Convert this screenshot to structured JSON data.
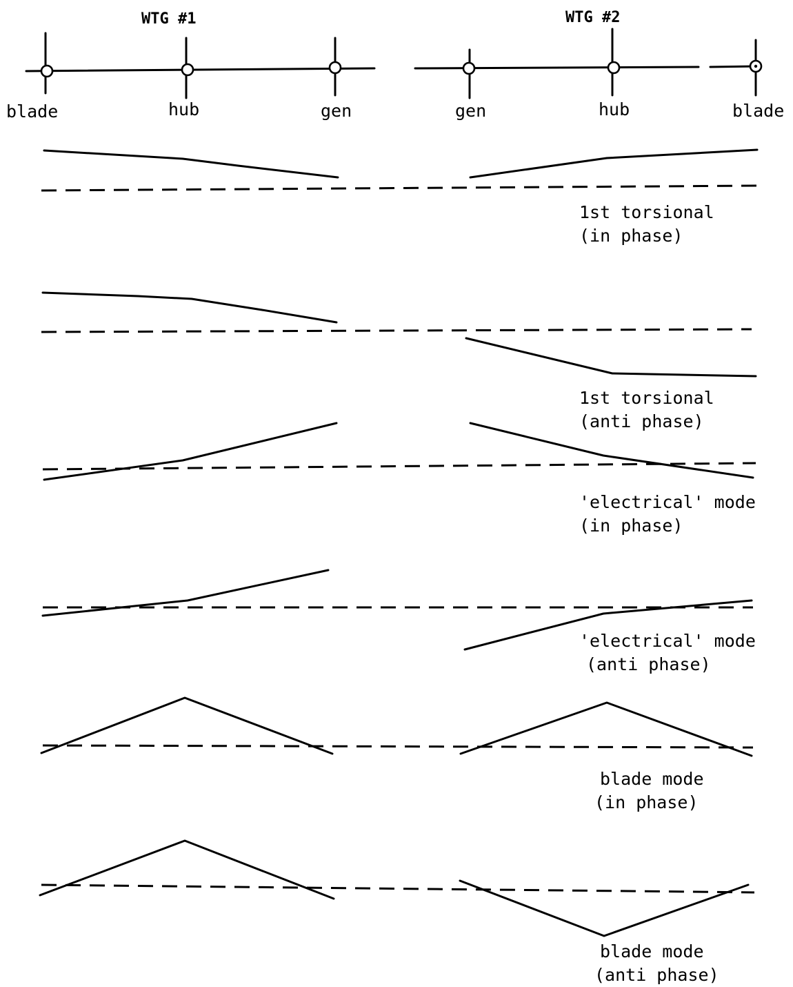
{
  "headers": {
    "wtg1": "WTG #1",
    "wtg2": "WTG #2"
  },
  "nodes": {
    "wtg1": [
      "blade",
      "hub",
      "gen"
    ],
    "wtg2": [
      "gen",
      "hub",
      "blade"
    ]
  },
  "modes": [
    {
      "line1": "1st torsional",
      "line2": "(in phase)"
    },
    {
      "line1": "1st torsional",
      "line2": "(anti phase)"
    },
    {
      "line1": "'electrical' mode",
      "line2": "(in phase)"
    },
    {
      "line1": "'electrical' mode",
      "line2": "(anti phase)"
    },
    {
      "line1": "blade mode",
      "line2": "(in phase)"
    },
    {
      "line1": "blade mode",
      "line2": "(anti phase)"
    }
  ]
}
